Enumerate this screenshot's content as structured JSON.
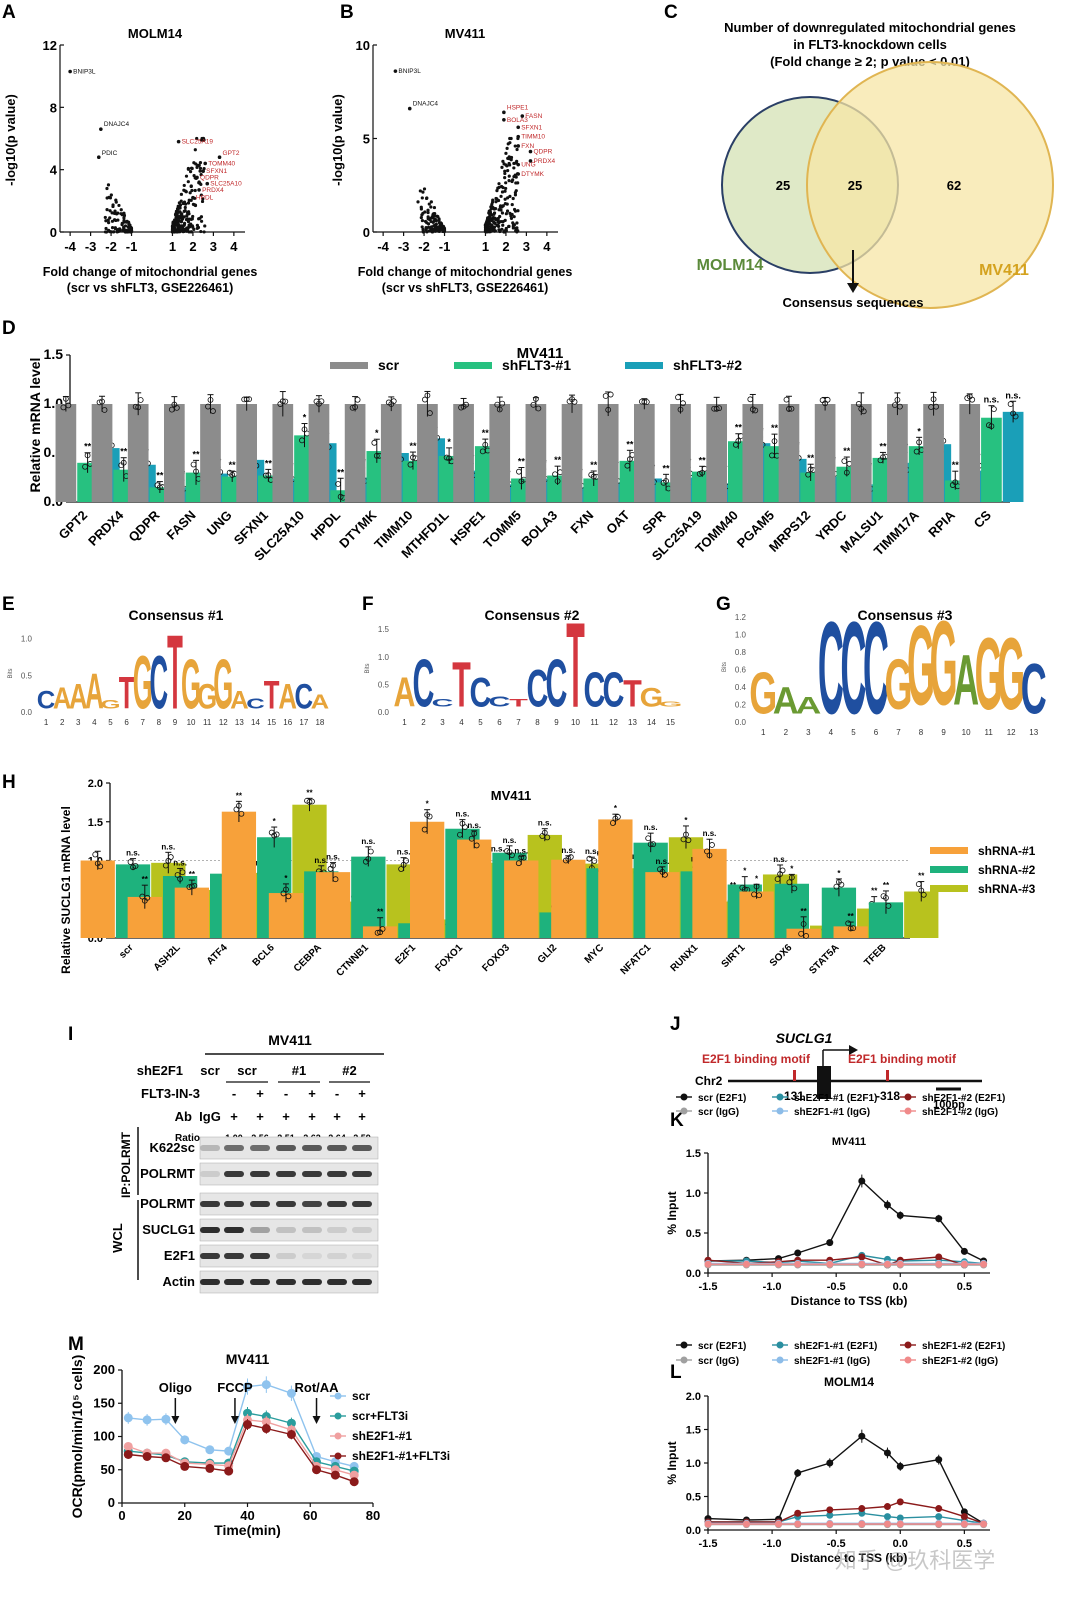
{
  "panels": {
    "A": "A",
    "B": "B",
    "C": "C",
    "D": "D",
    "E": "E",
    "F": "F",
    "G": "G",
    "H": "H",
    "I": "I",
    "J": "J",
    "K": "K",
    "L": "L",
    "M": "M"
  },
  "volcano": {
    "xlabel_1": "Fold change of mitochondrial genes",
    "ylabel": "-log10(p value)",
    "xticks": [
      "-4",
      "-3",
      "-2",
      "-1",
      "1",
      "2",
      "3",
      "4"
    ],
    "A": {
      "title": "MOLM14",
      "xlabel_2": "(scr vs shFLT3, GSE226461)",
      "yticks": [
        "0",
        "4",
        "8",
        "12"
      ],
      "labels_black": [
        "BNIP3L",
        "DNAJC4",
        "PDIC"
      ],
      "labels_red": [
        "SLC25A19",
        "GPT2",
        "TOMM40",
        "SFXN1",
        "QDPR",
        "SLC25A10",
        "PRDX4",
        "HPDL"
      ]
    },
    "B": {
      "title": "MV411",
      "xlabel_2": "(scr vs shFLT3, GSE226461)",
      "yticks": [
        "0",
        "5",
        "10"
      ],
      "labels_black": [
        "BNIP3L",
        "DNAJC4"
      ],
      "labels_red": [
        "HSPE1",
        "BOLA3",
        "FASN",
        "SFXN1",
        "TIMM10",
        "FXN",
        "QDPR",
        "PRDX4",
        "UNG",
        "DTYMK"
      ]
    }
  },
  "venn": {
    "title_1": "Number of downregulated mitochondrial genes",
    "title_2": "in FLT3-knockdown cells",
    "title_3": "(Fold change ≥ 2; p value < 0.01)",
    "left_label": "MOLM14",
    "right_label": "MV411",
    "left_only": "25",
    "overlap": "25",
    "right_only": "62",
    "arrow_label": "Consensus sequences",
    "colors": {
      "left": "#6b9a3a",
      "right": "#d4a21e",
      "left_fill": "#dfe9c7",
      "right_fill": "#f7e6a6",
      "left_stroke": "#2a3f66",
      "right_stroke": "#e0b552"
    }
  },
  "chart_data": [
    {
      "type": "bar",
      "title": "MV411",
      "ylabel": "Relative mRNA level",
      "ylim": [
        0,
        1.5
      ],
      "yticks": [
        "0.0",
        "0.5",
        "1.0",
        "1.5"
      ],
      "colors": [
        "#8c8c8c",
        "#27c180",
        "#1a9fb8"
      ],
      "categories": [
        "GPT2",
        "PRDX4",
        "QDPR",
        "FASN",
        "UNG",
        "SFXN1",
        "SLC25A10",
        "HPDL",
        "DTYMK",
        "TIMM10",
        "MTHFD1L",
        "HSPE1",
        "TOMM5",
        "BOLA3",
        "FXN",
        "OAT",
        "SPR",
        "SLC25A19",
        "TOMM40",
        "PGAM5",
        "MRPS12",
        "YRDC",
        "MALSU1",
        "TIMM17A",
        "RPIA",
        "CS"
      ],
      "series": [
        {
          "name": "scr",
          "values": [
            1,
            1,
            1,
            1,
            1,
            1,
            1,
            1,
            1,
            1,
            1,
            1,
            1,
            1,
            1,
            1,
            1,
            1,
            1,
            1,
            1,
            1,
            1,
            1,
            1,
            1
          ]
        },
        {
          "name": "shFLT3-#1",
          "values": [
            0.4,
            0.33,
            0.15,
            0.3,
            0.26,
            0.27,
            0.68,
            0.12,
            0.52,
            0.42,
            0.47,
            0.57,
            0.24,
            0.27,
            0.24,
            0.42,
            0.2,
            0.31,
            0.62,
            0.57,
            0.3,
            0.36,
            0.45,
            0.57,
            0.22,
            0.86
          ]
        },
        {
          "name": "shFLT3-#2",
          "values": [
            0.55,
            0.38,
            0.15,
            0.29,
            0.43,
            0.24,
            0.6,
            0.25,
            0.5,
            0.65,
            0.32,
            0.18,
            0.24,
            0.15,
            0.2,
            0.24,
            0.25,
            0.19,
            0.6,
            0.44,
            0.26,
            0.18,
            0.4,
            0.59,
            0.32,
            0.92
          ]
        }
      ],
      "sig": [
        [
          "**",
          "*"
        ],
        [
          "**",
          "**"
        ],
        [
          "**",
          "**"
        ],
        [
          "**",
          "**"
        ],
        [
          "**",
          "*"
        ],
        [
          "**",
          "**"
        ],
        [
          "*",
          "*"
        ],
        [
          "**",
          "**"
        ],
        [
          "*",
          "*"
        ],
        [
          "**",
          "*"
        ],
        [
          "*",
          "**"
        ],
        [
          "**",
          "**"
        ],
        [
          "**",
          "**"
        ],
        [
          "**",
          "**"
        ],
        [
          "**",
          "**"
        ],
        [
          "**",
          "**"
        ],
        [
          "**",
          "**"
        ],
        [
          "**",
          "**"
        ],
        [
          "**",
          "**"
        ],
        [
          "**",
          "**"
        ],
        [
          "**",
          "**"
        ],
        [
          "**",
          "**"
        ],
        [
          "**",
          "**"
        ],
        [
          "*",
          "*"
        ],
        [
          "**",
          "**"
        ],
        [
          "n.s.",
          "n.s."
        ]
      ]
    },
    {
      "type": "bar",
      "title": "MV411",
      "ylabel": "Relative SUCLG1 mRNA level",
      "ylim": [
        0,
        2.0
      ],
      "yticks": [
        "0.0",
        "0.5",
        "1.0",
        "1.5",
        "2.0"
      ],
      "colors": [
        "#f7a13a",
        "#1eb27d",
        "#b8c21e"
      ],
      "categories": [
        "scr",
        "ASH2L",
        "ATF4",
        "BCL6",
        "CEBPA",
        "CTNNB1",
        "E2F1",
        "FOXO1",
        "FOXO3",
        "GLI2",
        "MYC",
        "NFATC1",
        "RUNX1",
        "SIRT1",
        "SOX6",
        "STAT5A",
        "TFEB"
      ],
      "series": [
        {
          "name": "shRNA-#1",
          "values": [
            1.0,
            0.53,
            0.65,
            1.63,
            0.58,
            0.85,
            0.15,
            1.5,
            1.27,
            1.0,
            1.01,
            1.53,
            0.85,
            1.15,
            0.6,
            0.12,
            0.15
          ]
        },
        {
          "name": "shRNA-#2",
          "values": [
            0.95,
            0.8,
            0.83,
            1.3,
            0.86,
            1.05,
            0.19,
            1.41,
            1.1,
            0.33,
            0.9,
            1.23,
            0.86,
            0.69,
            0.7,
            0.65,
            0.46
          ]
        },
        {
          "name": "shRNA-#3",
          "values": [
            0.97,
            0.62,
            0.84,
            1.72,
            0.47,
            0.95,
            0.24,
            0.97,
            1.33,
            0.96,
            0.9,
            1.3,
            0.47,
            0.82,
            0.16,
            0.38,
            0.6
          ]
        }
      ],
      "sig": [
        [
          "",
          "n.s.",
          "n.s."
        ],
        [
          "**",
          "n.s.",
          "**"
        ],
        [
          "**",
          "**",
          "n.s."
        ],
        [
          "**",
          "*",
          "**"
        ],
        [
          "*",
          "n.s.",
          "**"
        ],
        [
          "n.s.",
          "n.s.",
          "n.s."
        ],
        [
          "**",
          "**",
          "**"
        ],
        [
          "*",
          "n.s.",
          "n.s."
        ],
        [
          "n.s.",
          "n.s.",
          "n.s."
        ],
        [
          "n.s.",
          "**",
          "n.s."
        ],
        [
          "n.s.",
          "n.s.",
          "n.s."
        ],
        [
          "*",
          "n.s.",
          "*"
        ],
        [
          "n.s.",
          "n.s.",
          "**"
        ],
        [
          "n.s.",
          "*",
          "n.s."
        ],
        [
          "*",
          "*",
          "**"
        ],
        [
          "**",
          "*",
          "**"
        ],
        [
          "**",
          "**",
          "**"
        ]
      ]
    },
    {
      "type": "line",
      "title": "MV411",
      "xlabel": "Distance to TSS (kb)",
      "ylabel": "% Input",
      "xlim": [
        -1.5,
        0.7
      ],
      "ylim": [
        0,
        1.5
      ],
      "xticks": [
        "-1.5",
        "-1.0",
        "-0.5",
        "0.0",
        "0.5"
      ],
      "yticks": [
        "0.0",
        "0.5",
        "1.0",
        "1.5"
      ],
      "x": [
        -1.5,
        -1.2,
        -0.95,
        -0.8,
        -0.55,
        -0.3,
        -0.1,
        0.0,
        0.3,
        0.5,
        0.65
      ],
      "series": [
        {
          "name": "scr (E2F1)",
          "color": "#111111",
          "values": [
            0.15,
            0.16,
            0.18,
            0.25,
            0.38,
            1.15,
            0.85,
            0.72,
            0.68,
            0.27,
            0.15
          ]
        },
        {
          "name": "shE2F1-#1 (E2F1)",
          "color": "#2a8fa0",
          "values": [
            0.15,
            0.15,
            0.13,
            0.15,
            0.12,
            0.22,
            0.17,
            0.15,
            0.16,
            0.14,
            0.12
          ]
        },
        {
          "name": "shE2F1-#2 (E2F1)",
          "color": "#8b1a1a",
          "values": [
            0.16,
            0.12,
            0.14,
            0.16,
            0.16,
            0.2,
            0.1,
            0.16,
            0.2,
            0.1,
            0.12
          ]
        },
        {
          "name": "scr (IgG)",
          "color": "#a0a0a0",
          "values": [
            0.1,
            0.1,
            0.1,
            0.1,
            0.1,
            0.1,
            0.1,
            0.1,
            0.1,
            0.1,
            0.1
          ]
        },
        {
          "name": "shE2F1-#1 (IgG)",
          "color": "#8cbce8",
          "values": [
            0.12,
            0.12,
            0.12,
            0.12,
            0.12,
            0.12,
            0.12,
            0.12,
            0.12,
            0.12,
            0.12
          ]
        },
        {
          "name": "shE2F1-#2 (IgG)",
          "color": "#f08a8a",
          "values": [
            0.11,
            0.11,
            0.11,
            0.11,
            0.11,
            0.11,
            0.11,
            0.11,
            0.11,
            0.11,
            0.11
          ]
        }
      ]
    },
    {
      "type": "line",
      "title": "MOLM14",
      "xlabel": "Distance to TSS (kb)",
      "ylabel": "% Input",
      "xlim": [
        -1.5,
        0.7
      ],
      "ylim": [
        0,
        2.0
      ],
      "xticks": [
        "-1.5",
        "-1.0",
        "-0.5",
        "0.0",
        "0.5"
      ],
      "yticks": [
        "0.0",
        "0.5",
        "1.0",
        "1.5",
        "2.0"
      ],
      "x": [
        -1.5,
        -1.2,
        -0.95,
        -0.8,
        -0.55,
        -0.3,
        -0.1,
        0.0,
        0.3,
        0.5,
        0.65
      ],
      "series": [
        {
          "name": "scr (E2F1)",
          "color": "#111111",
          "values": [
            0.17,
            0.15,
            0.16,
            0.85,
            1.0,
            1.4,
            1.15,
            0.95,
            1.05,
            0.27,
            0.1
          ]
        },
        {
          "name": "shE2F1-#1 (E2F1)",
          "color": "#2a8fa0",
          "values": [
            0.12,
            0.12,
            0.12,
            0.2,
            0.22,
            0.25,
            0.2,
            0.18,
            0.2,
            0.14,
            0.1
          ]
        },
        {
          "name": "shE2F1-#2 (E2F1)",
          "color": "#8b1a1a",
          "values": [
            0.12,
            0.12,
            0.12,
            0.25,
            0.3,
            0.32,
            0.35,
            0.42,
            0.32,
            0.2,
            0.1
          ]
        },
        {
          "name": "scr (IgG)",
          "color": "#a0a0a0",
          "values": [
            0.08,
            0.08,
            0.08,
            0.08,
            0.08,
            0.08,
            0.08,
            0.08,
            0.08,
            0.08,
            0.08
          ]
        },
        {
          "name": "shE2F1-#1 (IgG)",
          "color": "#8cbce8",
          "values": [
            0.1,
            0.1,
            0.1,
            0.1,
            0.1,
            0.1,
            0.1,
            0.1,
            0.1,
            0.1,
            0.1
          ]
        },
        {
          "name": "shE2F1-#2 (IgG)",
          "color": "#f08a8a",
          "values": [
            0.09,
            0.09,
            0.09,
            0.09,
            0.09,
            0.09,
            0.09,
            0.09,
            0.09,
            0.09,
            0.09
          ]
        }
      ]
    },
    {
      "type": "line",
      "title": "MV411",
      "xlabel": "Time(min)",
      "ylabel": "OCR(pmol/min/10⁵ cells)",
      "xlim": [
        0,
        80
      ],
      "ylim": [
        0,
        200
      ],
      "xticks": [
        "0",
        "20",
        "40",
        "60",
        "80"
      ],
      "yticks": [
        "0",
        "50",
        "100",
        "150",
        "200"
      ],
      "x": [
        2,
        8,
        14,
        20,
        28,
        34,
        40,
        46,
        54,
        62,
        68,
        74
      ],
      "series": [
        {
          "name": "scr",
          "color": "#8fc3ee",
          "values": [
            128,
            125,
            126,
            95,
            80,
            78,
            175,
            178,
            165,
            70,
            62,
            55
          ]
        },
        {
          "name": "scr+FLT3i",
          "color": "#2a9d9d",
          "values": [
            78,
            75,
            72,
            62,
            60,
            60,
            135,
            130,
            120,
            62,
            55,
            48
          ]
        },
        {
          "name": "shE2F1-#1",
          "color": "#f0a0a0",
          "values": [
            85,
            75,
            75,
            60,
            58,
            56,
            125,
            122,
            110,
            55,
            50,
            42
          ]
        },
        {
          "name": "shE2F1-#1+FLT3i",
          "color": "#8b1a1a",
          "values": [
            73,
            70,
            68,
            55,
            52,
            48,
            118,
            112,
            103,
            50,
            42,
            32
          ]
        }
      ],
      "annotations": [
        "Oligo",
        "FCCP",
        "Rot/AA"
      ]
    }
  ],
  "logos": {
    "E": {
      "title": "Consensus #1",
      "ylabel": "Bits",
      "yticks": [
        "0.0",
        "0.5",
        "1.0"
      ],
      "positions": [
        "1",
        "2",
        "3",
        "4",
        "5",
        "6",
        "7",
        "8",
        "9",
        "10",
        "11",
        "12",
        "13",
        "14",
        "15",
        "16",
        "17",
        "18"
      ],
      "letters": [
        "C",
        "A",
        "A",
        "A",
        "T",
        "G",
        "C",
        "T",
        "G",
        "G",
        "G",
        "A",
        "T",
        "A",
        "C",
        "A"
      ]
    },
    "F": {
      "title": "Consensus #2",
      "ylabel": "Bits",
      "yticks": [
        "0.0",
        "0.5",
        "1.0",
        "1.5"
      ],
      "positions": [
        "1",
        "2",
        "3",
        "4",
        "5",
        "6",
        "7",
        "8",
        "9",
        "10",
        "11",
        "12",
        "13",
        "14",
        "15"
      ],
      "letters": [
        "A",
        "C",
        "T",
        "C",
        "C",
        "C",
        "T",
        "C",
        "C",
        "T",
        "G"
      ]
    },
    "G": {
      "title": "Consensus #3",
      "ylabel": "Bits",
      "yticks": [
        "0.0",
        "0.2",
        "0.4",
        "0.6",
        "0.8",
        "1.0",
        "1.2"
      ],
      "positions": [
        "1",
        "2",
        "3",
        "4",
        "5",
        "6",
        "7",
        "8",
        "9",
        "10",
        "11",
        "12",
        "13"
      ],
      "letters": [
        "G",
        "A",
        "A",
        "C",
        "C",
        "C",
        "G",
        "G",
        "G",
        "A",
        "G",
        "G",
        "C"
      ]
    }
  },
  "blot": {
    "cell": "MV411",
    "row_labels": [
      "shE2F1",
      "FLT3-IN-3",
      "Ab"
    ],
    "sh_groups": [
      "scr",
      "scr",
      "#1",
      "#2"
    ],
    "flt3_signs": [
      "-",
      "+",
      "-",
      "+",
      "-",
      "+"
    ],
    "ab_labels": [
      "IgG",
      "+",
      "+",
      "+",
      "+",
      "+",
      "+"
    ],
    "ratio_label": "Ratio",
    "ratios": [
      "1.00",
      "2.56",
      "2.51",
      "2.62",
      "2.64",
      "2.59"
    ],
    "ip_label": "IP:POLRMT",
    "wcl_label": "WCL",
    "bands": [
      "K622sc",
      "POLRMT",
      "POLRMT",
      "SUCLG1",
      "E2F1",
      "Actin"
    ]
  },
  "gene_map": {
    "gene": "SUCLG1",
    "motif_left": "E2F1 binding motif",
    "motif_right": "E2F1 binding motif",
    "chr": "Chr2",
    "pos_left": "131",
    "pos_right": "-318",
    "scale": "100bp"
  },
  "watermark": "知乎 @玖科医学"
}
